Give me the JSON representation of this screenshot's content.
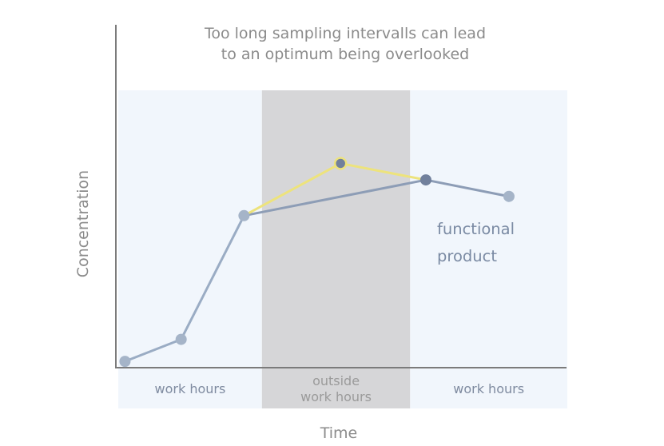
{
  "colors": {
    "background_band": "#f1f6fc",
    "outside_band": "#d6d6d8",
    "axis": "#7b7b7b",
    "title": "#8b8b8b",
    "actual_line": "#9aacc4",
    "actual_line_upper": "#8d9db6",
    "actual_marker": "#a5b4c8",
    "key_marker": "#71809c",
    "overlooked_line": "#ede37c",
    "product_label": "#7a8aa3",
    "band_label": "#7f8ba0",
    "outside_label": "#9a9a9a"
  },
  "chart_data": {
    "type": "line",
    "title": "Too long sampling intervalls can lead\nto an optimum being overlooked",
    "xlabel": "Time",
    "ylabel": "Concentration",
    "xlim": [
      0,
      10
    ],
    "ylim": [
      0,
      10
    ],
    "bands": [
      {
        "label": "work hours",
        "from": 0,
        "to": 3.2
      },
      {
        "label": "outside\nwork hours",
        "from": 3.2,
        "to": 6.5
      },
      {
        "label": "work hours",
        "from": 6.5,
        "to": 10
      }
    ],
    "series": [
      {
        "x": [
          0.15,
          1.4,
          2.8,
          6.85,
          8.7
        ],
        "y": [
          0.2,
          1.0,
          5.5,
          6.8,
          6.2
        ]
      },
      {
        "x": [
          2.8,
          4.95,
          6.85
        ],
        "y": [
          5.5,
          7.4,
          6.8
        ]
      }
    ],
    "annotation": "functional\nproduct"
  }
}
